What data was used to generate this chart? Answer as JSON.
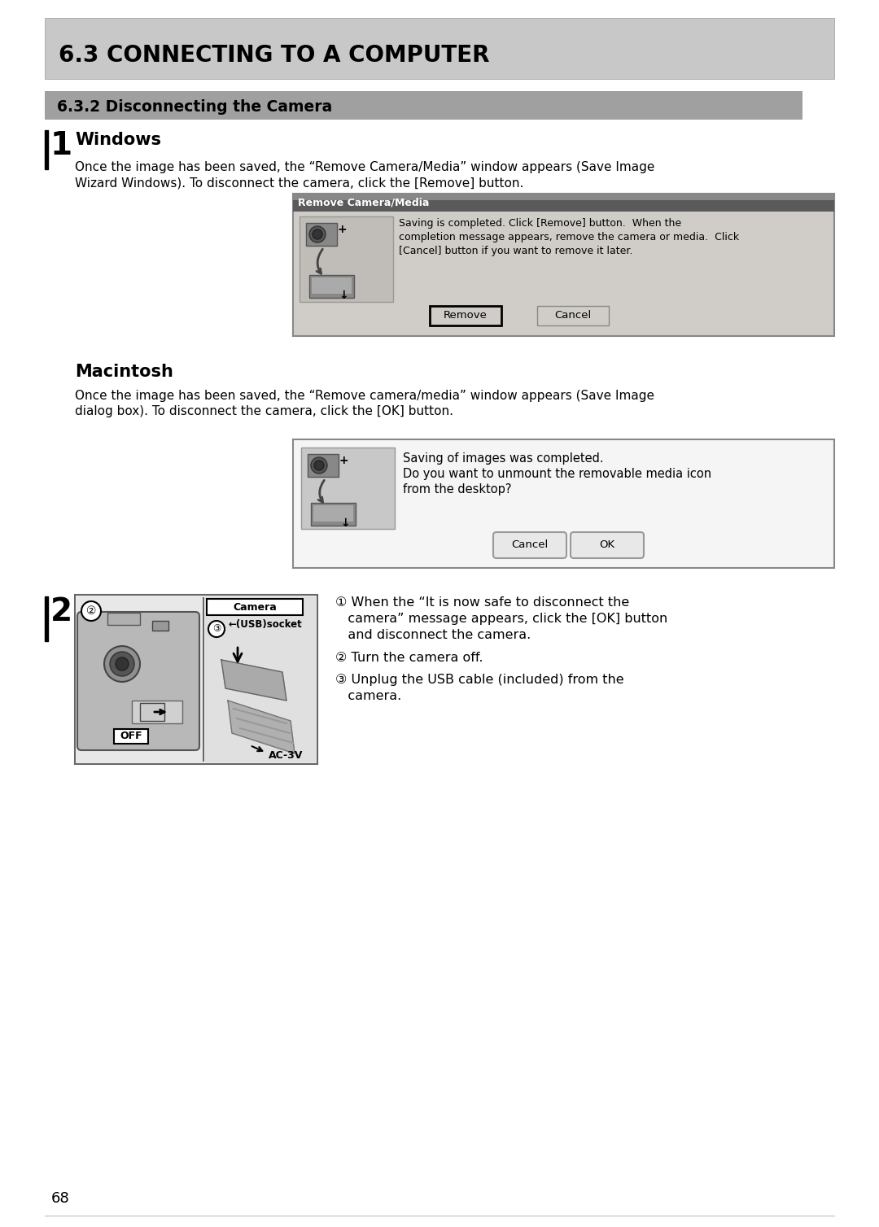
{
  "page_bg": "#ffffff",
  "header_bg": "#c8c8c8",
  "header_text": "6.3 CONNECTING TO A COMPUTER",
  "subheader_bg": "#a0a0a0",
  "subheader_text": "6.3.2 Disconnecting the Camera",
  "step1_title": "Windows",
  "step1_body_line1": "Once the image has been saved, the “Remove Camera/Media” window appears (Save Image",
  "step1_body_line2": "Wizard Windows). To disconnect the camera, click the [Remove] button.",
  "win_dialog_title": "Remove Camera/Media",
  "win_dialog_body_line1": "Saving is completed. Click [Remove] button.  When the",
  "win_dialog_body_line2": "completion message appears, remove the camera or media.  Click",
  "win_dialog_body_line3": "[Cancel] button if you want to remove it later.",
  "win_btn1": "Remove",
  "win_btn2": "Cancel",
  "mac_title": "Macintosh",
  "mac_body_line1": "Once the image has been saved, the “Remove camera/media” window appears (Save Image",
  "mac_body_line2": "dialog box). To disconnect the camera, click the [OK] button.",
  "mac_dialog_body_line1": "Saving of images was completed.",
  "mac_dialog_body_line2": "Do you want to unmount the removable media icon",
  "mac_dialog_body_line3": "from the desktop?",
  "mac_btn1": "Cancel",
  "mac_btn2": "OK",
  "step2_instr1": "① When the “It is now safe to disconnect the",
  "step2_instr1b": "   camera” message appears, click the [OK] button",
  "step2_instr1c": "   and disconnect the camera.",
  "step2_instr2": "② Turn the camera off.",
  "step2_instr3": "③ Unplug the USB cable (included) from the",
  "step2_instr3b": "   camera.",
  "page_number": "68",
  "win_titlebar_color": "#6b6b6b",
  "win_dialog_bg": "#d0cdc8",
  "mac_dialog_bg": "#f5f5f5"
}
